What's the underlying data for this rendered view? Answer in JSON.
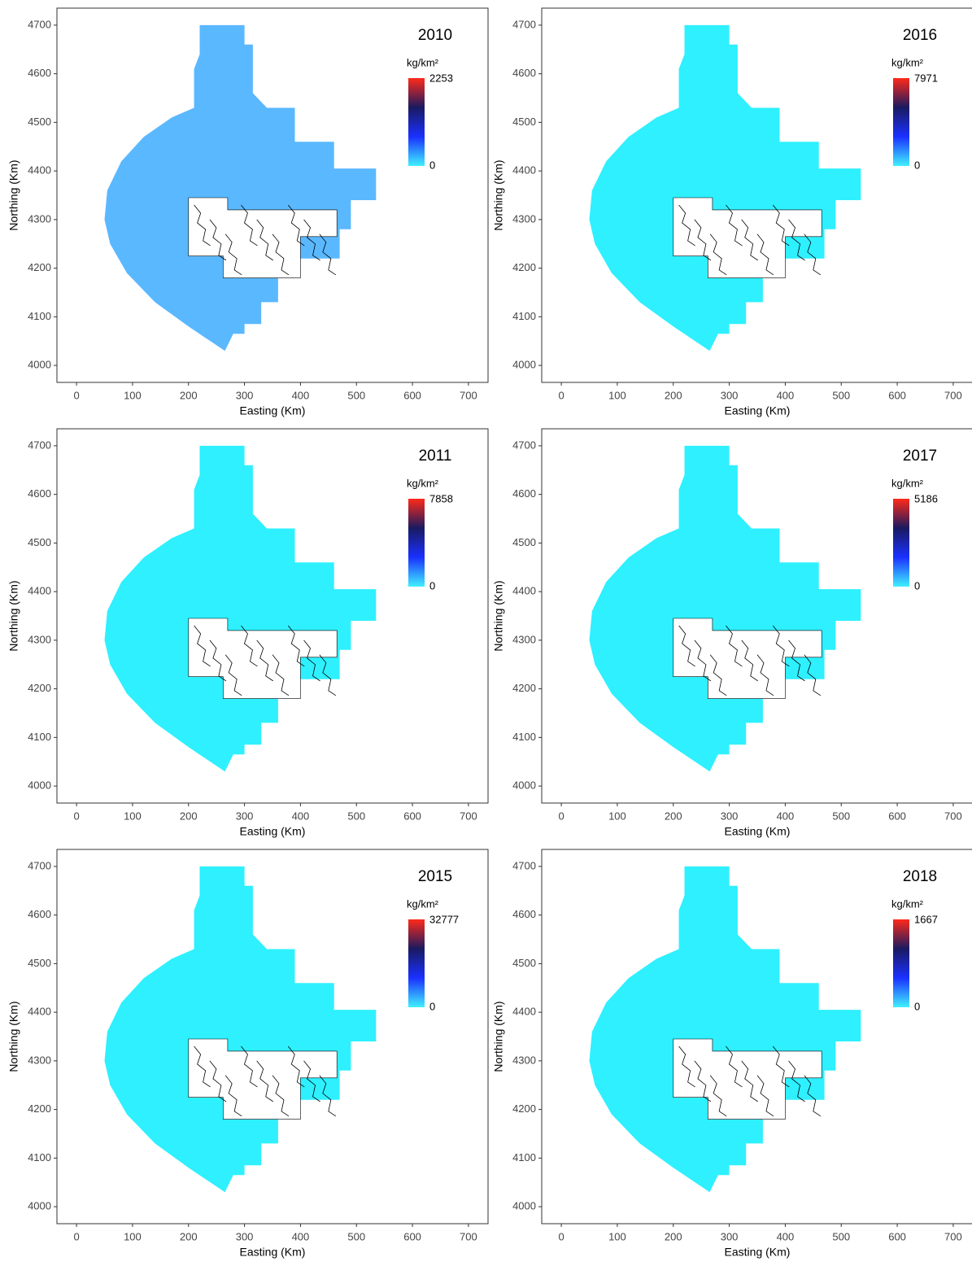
{
  "chart_data": [
    {
      "type": "map",
      "title": "2010",
      "x_label": "Easting (Km)",
      "y_label": "Northing (Km)",
      "xlim": [
        -35,
        735
      ],
      "ylim": [
        3965,
        4735
      ],
      "xticks": [
        0,
        100,
        200,
        300,
        400,
        500,
        600,
        700
      ],
      "yticks": [
        4000,
        4100,
        4200,
        4300,
        4400,
        4500,
        4600,
        4700
      ],
      "color": "#5ab8ff",
      "legend_title": "kg/km²",
      "colorbar": [
        0,
        2253
      ],
      "colorscale": [
        "#40f0ff",
        "#1a30ff",
        "#1a1a60",
        "#ff2a1a"
      ]
    },
    {
      "type": "map",
      "title": "2016",
      "x_label": "Easting (Km)",
      "y_label": "Northing (Km)",
      "xlim": [
        -35,
        735
      ],
      "ylim": [
        3965,
        4735
      ],
      "xticks": [
        0,
        100,
        200,
        300,
        400,
        500,
        600,
        700
      ],
      "yticks": [
        4000,
        4100,
        4200,
        4300,
        4400,
        4500,
        4600,
        4700
      ],
      "color": "#2ef0ff",
      "legend_title": "kg/km²",
      "colorbar": [
        0,
        7971
      ],
      "colorscale": [
        "#40f0ff",
        "#1a30ff",
        "#1a1a60",
        "#ff2a1a"
      ]
    },
    {
      "type": "map",
      "title": "2011",
      "x_label": "Easting (Km)",
      "y_label": "Northing (Km)",
      "xlim": [
        -35,
        735
      ],
      "ylim": [
        3965,
        4735
      ],
      "xticks": [
        0,
        100,
        200,
        300,
        400,
        500,
        600,
        700
      ],
      "yticks": [
        4000,
        4100,
        4200,
        4300,
        4400,
        4500,
        4600,
        4700
      ],
      "color": "#2ef0ff",
      "legend_title": "kg/km²",
      "colorbar": [
        0,
        7858
      ],
      "colorscale": [
        "#40f0ff",
        "#1a30ff",
        "#1a1a60",
        "#ff2a1a"
      ]
    },
    {
      "type": "map",
      "title": "2017",
      "x_label": "Easting (Km)",
      "y_label": "Northing (Km)",
      "xlim": [
        -35,
        735
      ],
      "ylim": [
        3965,
        4735
      ],
      "xticks": [
        0,
        100,
        200,
        300,
        400,
        500,
        600,
        700
      ],
      "yticks": [
        4000,
        4100,
        4200,
        4300,
        4400,
        4500,
        4600,
        4700
      ],
      "color": "#2ef0ff",
      "legend_title": "kg/km²",
      "colorbar": [
        0,
        5186
      ],
      "colorscale": [
        "#40f0ff",
        "#1a30ff",
        "#1a1a60",
        "#ff2a1a"
      ]
    },
    {
      "type": "map",
      "title": "2015",
      "x_label": "Easting (Km)",
      "y_label": "Northing (Km)",
      "xlim": [
        -35,
        735
      ],
      "ylim": [
        3965,
        4735
      ],
      "xticks": [
        0,
        100,
        200,
        300,
        400,
        500,
        600,
        700
      ],
      "yticks": [
        4000,
        4100,
        4200,
        4300,
        4400,
        4500,
        4600,
        4700
      ],
      "color": "#2ef0ff",
      "legend_title": "kg/km²",
      "colorbar": [
        0,
        32777
      ],
      "colorscale": [
        "#40f0ff",
        "#1a30ff",
        "#1a1a60",
        "#ff2a1a"
      ]
    },
    {
      "type": "map",
      "title": "2018",
      "x_label": "Easting (Km)",
      "y_label": "Northing (Km)",
      "xlim": [
        -35,
        735
      ],
      "ylim": [
        3965,
        4735
      ],
      "xticks": [
        0,
        100,
        200,
        300,
        400,
        500,
        600,
        700
      ],
      "yticks": [
        4000,
        4100,
        4200,
        4300,
        4400,
        4500,
        4600,
        4700
      ],
      "color": "#2ef0ff",
      "legend_title": "kg/km²",
      "colorbar": [
        0,
        1667
      ],
      "colorscale": [
        "#40f0ff",
        "#1a30ff",
        "#1a1a60",
        "#ff2a1a"
      ]
    }
  ]
}
